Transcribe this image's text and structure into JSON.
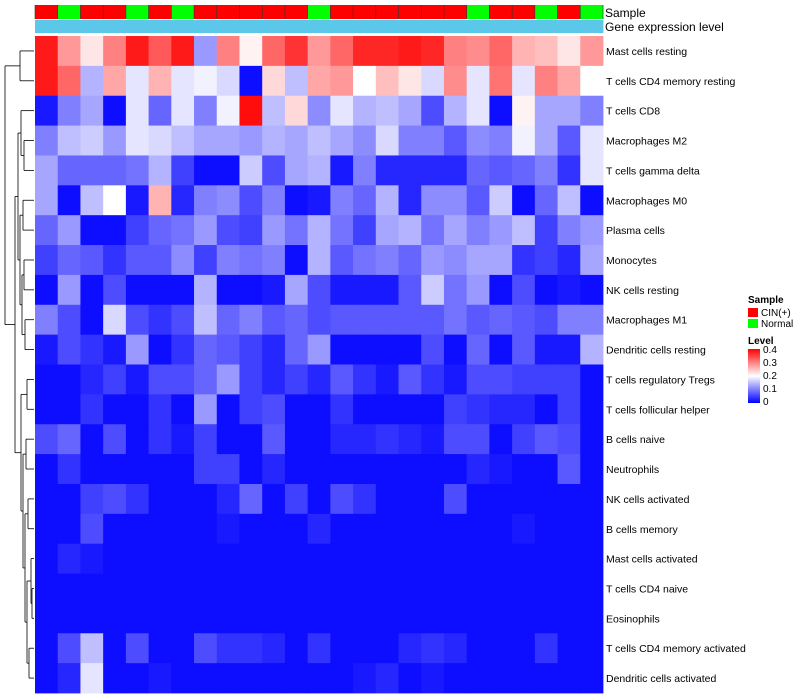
{
  "chart_data": {
    "type": "heatmap",
    "title": "",
    "annotation_tracks": [
      "Sample",
      "Gene expression level"
    ],
    "sample_groups": [
      "CIN(+)",
      "Normal",
      "CIN(+)",
      "CIN(+)",
      "Normal",
      "CIN(+)",
      "Normal",
      "CIN(+)",
      "CIN(+)",
      "CIN(+)",
      "CIN(+)",
      "CIN(+)",
      "Normal",
      "CIN(+)",
      "CIN(+)",
      "CIN(+)",
      "CIN(+)",
      "CIN(+)",
      "CIN(+)",
      "Normal",
      "CIN(+)",
      "CIN(+)",
      "Normal",
      "CIN(+)",
      "Normal"
    ],
    "gene_expression_color": "#5bc8ea",
    "row_labels": [
      "Mast cells resting",
      "T cells CD4 memory resting",
      "T cells CD8",
      "Macrophages M2",
      "T cells gamma delta",
      "Macrophages M0",
      "Plasma cells",
      "Monocytes",
      "NK cells resting",
      "Macrophages M1",
      "Dendritic cells resting",
      "T cells regulatory  Tregs",
      "T cells follicular helper",
      "B cells naive",
      "Neutrophils",
      "NK cells activated",
      "B cells memory",
      "Mast cells activated",
      "T cells CD4 naive",
      "Eosinophils",
      "T cells CD4 memory activated",
      "Dendritic cells activated"
    ],
    "values": [
      [
        0.38,
        0.28,
        0.22,
        0.3,
        0.38,
        0.33,
        0.38,
        0.12,
        0.3,
        0.21,
        0.32,
        0.36,
        0.28,
        0.32,
        0.37,
        0.37,
        0.38,
        0.37,
        0.3,
        0.29,
        0.32,
        0.26,
        0.25,
        0.22,
        0.28
      ],
      [
        0.38,
        0.32,
        0.14,
        0.27,
        0.18,
        0.26,
        0.18,
        0.19,
        0.17,
        0.01,
        0.23,
        0.15,
        0.27,
        0.28,
        0.2,
        0.25,
        0.22,
        0.17,
        0.29,
        0.18,
        0.31,
        0.18,
        0.3,
        0.27,
        0.2
      ],
      [
        0.02,
        0.1,
        0.13,
        0.01,
        0.18,
        0.08,
        0.18,
        0.1,
        0.19,
        0.39,
        0.15,
        0.23,
        0.11,
        0.18,
        0.14,
        0.15,
        0.13,
        0.06,
        0.14,
        0.18,
        0.01,
        0.21,
        0.13,
        0.13,
        0.1
      ],
      [
        0.1,
        0.15,
        0.16,
        0.12,
        0.18,
        0.17,
        0.15,
        0.13,
        0.13,
        0.12,
        0.14,
        0.13,
        0.15,
        0.13,
        0.11,
        0.17,
        0.1,
        0.1,
        0.07,
        0.11,
        0.1,
        0.19,
        0.13,
        0.07,
        0.18
      ],
      [
        0.13,
        0.08,
        0.08,
        0.08,
        0.09,
        0.14,
        0.05,
        0.01,
        0.01,
        0.16,
        0.06,
        0.13,
        0.14,
        0.02,
        0.1,
        0.03,
        0.03,
        0.03,
        0.03,
        0.08,
        0.07,
        0.08,
        0.1,
        0.04,
        0.18
      ],
      [
        0.13,
        0.01,
        0.15,
        0.2,
        0.02,
        0.26,
        0.03,
        0.1,
        0.11,
        0.06,
        0.1,
        0.01,
        0.02,
        0.1,
        0.08,
        0.14,
        0.03,
        0.11,
        0.11,
        0.07,
        0.16,
        0.01,
        0.08,
        0.15,
        0.01
      ],
      [
        0.08,
        0.12,
        0.01,
        0.01,
        0.05,
        0.08,
        0.09,
        0.12,
        0.06,
        0.05,
        0.12,
        0.09,
        0.14,
        0.09,
        0.05,
        0.13,
        0.14,
        0.09,
        0.13,
        0.1,
        0.12,
        0.15,
        0.05,
        0.1,
        0.12
      ],
      [
        0.05,
        0.08,
        0.07,
        0.04,
        0.07,
        0.07,
        0.11,
        0.05,
        0.1,
        0.09,
        0.1,
        0.01,
        0.14,
        0.07,
        0.09,
        0.1,
        0.08,
        0.12,
        0.11,
        0.13,
        0.13,
        0.04,
        0.05,
        0.03,
        0.13
      ],
      [
        0.01,
        0.12,
        0.01,
        0.06,
        0.01,
        0.01,
        0.01,
        0.14,
        0.01,
        0.01,
        0.02,
        0.13,
        0.06,
        0.02,
        0.02,
        0.02,
        0.07,
        0.16,
        0.09,
        0.12,
        0.01,
        0.06,
        0.01,
        0.02,
        0.01
      ],
      [
        0.1,
        0.06,
        0.01,
        0.17,
        0.06,
        0.04,
        0.06,
        0.15,
        0.08,
        0.1,
        0.07,
        0.08,
        0.06,
        0.07,
        0.07,
        0.07,
        0.07,
        0.07,
        0.09,
        0.07,
        0.08,
        0.07,
        0.06,
        0.1,
        0.1
      ],
      [
        0.02,
        0.06,
        0.04,
        0.02,
        0.12,
        0.01,
        0.04,
        0.08,
        0.07,
        0.05,
        0.03,
        0.08,
        0.12,
        0.01,
        0.01,
        0.01,
        0.01,
        0.06,
        0.01,
        0.08,
        0.01,
        0.07,
        0.02,
        0.02,
        0.14
      ],
      [
        0.01,
        0.01,
        0.03,
        0.05,
        0.02,
        0.06,
        0.06,
        0.08,
        0.12,
        0.05,
        0.03,
        0.05,
        0.03,
        0.07,
        0.04,
        0.02,
        0.07,
        0.04,
        0.02,
        0.06,
        0.06,
        0.05,
        0.05,
        0.05,
        0.01
      ],
      [
        0.01,
        0.01,
        0.04,
        0.01,
        0.01,
        0.04,
        0.01,
        0.12,
        0.01,
        0.05,
        0.06,
        0.01,
        0.01,
        0.04,
        0.01,
        0.01,
        0.01,
        0.01,
        0.05,
        0.04,
        0.03,
        0.03,
        0.01,
        0.05,
        0.01
      ],
      [
        0.06,
        0.08,
        0.01,
        0.06,
        0.01,
        0.04,
        0.02,
        0.05,
        0.01,
        0.01,
        0.07,
        0.01,
        0.01,
        0.03,
        0.03,
        0.04,
        0.03,
        0.02,
        0.06,
        0.06,
        0.01,
        0.05,
        0.07,
        0.06,
        0.01
      ],
      [
        0.01,
        0.04,
        0.01,
        0.01,
        0.01,
        0.01,
        0.01,
        0.05,
        0.05,
        0.01,
        0.03,
        0.01,
        0.01,
        0.01,
        0.01,
        0.01,
        0.01,
        0.01,
        0.01,
        0.03,
        0.02,
        0.01,
        0.01,
        0.07,
        0.01
      ],
      [
        0.01,
        0.01,
        0.05,
        0.06,
        0.04,
        0.01,
        0.01,
        0.01,
        0.03,
        0.08,
        0.01,
        0.05,
        0.01,
        0.06,
        0.04,
        0.01,
        0.01,
        0.01,
        0.06,
        0.01,
        0.01,
        0.01,
        0.01,
        0.01,
        0.01
      ],
      [
        0.01,
        0.01,
        0.06,
        0.01,
        0.01,
        0.01,
        0.01,
        0.01,
        0.02,
        0.01,
        0.01,
        0.01,
        0.03,
        0.01,
        0.01,
        0.01,
        0.01,
        0.01,
        0.01,
        0.01,
        0.01,
        0.02,
        0.01,
        0.01,
        0.01
      ],
      [
        0.01,
        0.03,
        0.02,
        0.01,
        0.01,
        0.01,
        0.01,
        0.01,
        0.01,
        0.01,
        0.01,
        0.01,
        0.01,
        0.01,
        0.01,
        0.01,
        0.01,
        0.01,
        0.01,
        0.01,
        0.01,
        0.01,
        0.01,
        0.01,
        0.01
      ],
      [
        0.01,
        0.01,
        0.01,
        0.01,
        0.01,
        0.01,
        0.01,
        0.01,
        0.01,
        0.01,
        0.01,
        0.01,
        0.01,
        0.01,
        0.01,
        0.01,
        0.01,
        0.01,
        0.01,
        0.01,
        0.01,
        0.01,
        0.01,
        0.01,
        0.01
      ],
      [
        0.01,
        0.01,
        0.01,
        0.01,
        0.01,
        0.01,
        0.01,
        0.01,
        0.01,
        0.01,
        0.01,
        0.01,
        0.01,
        0.01,
        0.01,
        0.01,
        0.01,
        0.01,
        0.01,
        0.01,
        0.01,
        0.01,
        0.01,
        0.01,
        0.01
      ],
      [
        0.01,
        0.06,
        0.15,
        0.01,
        0.06,
        0.01,
        0.01,
        0.06,
        0.04,
        0.04,
        0.03,
        0.01,
        0.04,
        0.01,
        0.01,
        0.01,
        0.03,
        0.04,
        0.03,
        0.01,
        0.01,
        0.01,
        0.04,
        0.01,
        0.01
      ],
      [
        0.01,
        0.03,
        0.18,
        0.01,
        0.01,
        0.02,
        0.01,
        0.01,
        0.01,
        0.01,
        0.01,
        0.01,
        0.01,
        0.01,
        0.02,
        0.03,
        0.01,
        0.02,
        0.01,
        0.01,
        0.01,
        0.01,
        0.01,
        0.01,
        0.01
      ]
    ],
    "color_scale": {
      "min": 0,
      "mid": 0.2,
      "max": 0.4,
      "low_color": "#0000ff",
      "mid_color": "#ffffff",
      "high_color": "#ff0000"
    },
    "legend": {
      "placement": "right",
      "sample_title": "Sample",
      "sample_entries": [
        {
          "label": "CIN(+)",
          "color": "#ff0000"
        },
        {
          "label": "Normal",
          "color": "#00ff00"
        }
      ],
      "level_title": "Level",
      "level_ticks": [
        "0.4",
        "0.3",
        "0.2",
        "0.1",
        "0"
      ]
    },
    "dendrogram": "row-clustering"
  }
}
